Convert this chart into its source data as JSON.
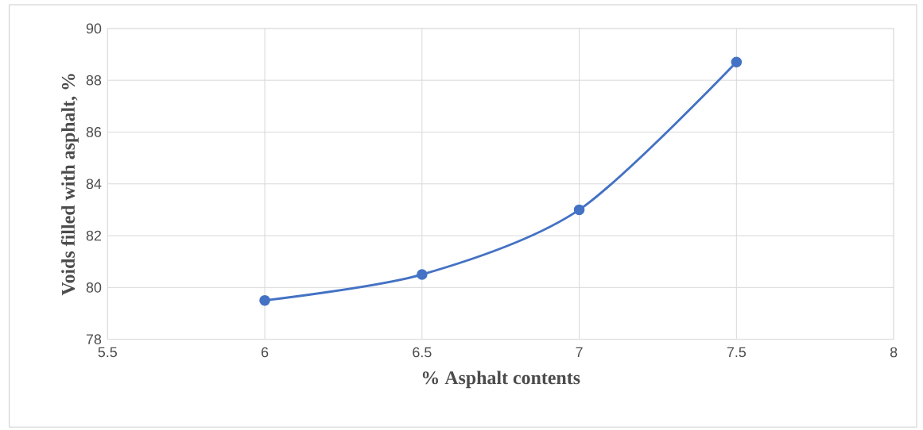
{
  "chart_data": {
    "type": "line",
    "xlabel": "% Asphalt contents",
    "ylabel": "Voids filled with asphalt, %",
    "x": [
      6,
      6.5,
      7,
      7.5
    ],
    "series": [
      {
        "color": "#4472c4",
        "values": [
          79.5,
          80.5,
          83.0,
          88.7
        ]
      }
    ],
    "xlim": [
      5.5,
      8
    ],
    "xticks": [
      5.5,
      6,
      6.5,
      7,
      7.5,
      8
    ],
    "ylim": [
      78,
      90
    ],
    "yticks": [
      78,
      80,
      82,
      84,
      86,
      88,
      90
    ],
    "grid": true,
    "marker": "circle",
    "line_style": "solid"
  }
}
